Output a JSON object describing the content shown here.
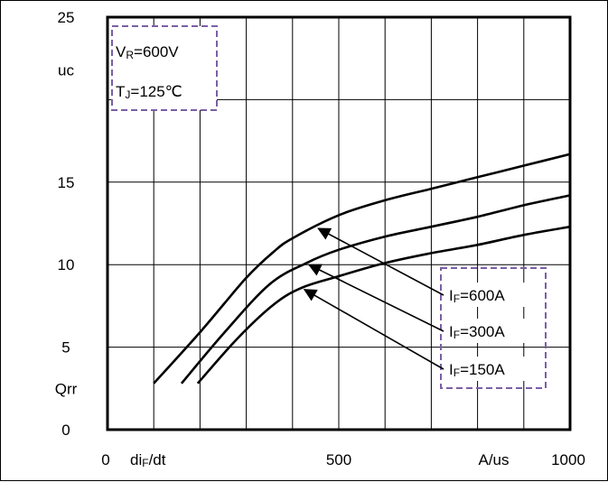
{
  "chart_data": {
    "type": "line",
    "xlabel": "diF/dt",
    "xlabel_main": "di",
    "xlabel_sub": "F",
    "xlabel_tail": "/dt",
    "xunit": "A/us",
    "ylabel": "Qrr",
    "yunit": "uc",
    "xlim": [
      0,
      1000
    ],
    "ylim": [
      0,
      25
    ],
    "x_ticks": [
      "0",
      "500",
      "1000"
    ],
    "y_ticks": [
      "0",
      "5",
      "10",
      "15",
      "25"
    ],
    "grid": true,
    "conditions": [
      {
        "text": "VR=600V",
        "main": "V",
        "sub": "R",
        "tail": "=600V"
      },
      {
        "text": "TJ=125℃",
        "main": "T",
        "sub": "J",
        "tail": "=125℃"
      }
    ],
    "series": [
      {
        "name": "IF=600A",
        "main": "I",
        "sub": "F",
        "tail": "=600A",
        "x": [
          100,
          200,
          300,
          360,
          400,
          500,
          600,
          700,
          800,
          900,
          1000
        ],
        "y": [
          2.8,
          5.9,
          9.2,
          10.8,
          11.6,
          13.0,
          13.9,
          14.6,
          15.3,
          16.0,
          16.7
        ],
        "arrow_x": 450
      },
      {
        "name": "IF=300A",
        "main": "I",
        "sub": "F",
        "tail": "=300A",
        "x": [
          160,
          250,
          350,
          430,
          500,
          600,
          700,
          800,
          900,
          1000
        ],
        "y": [
          2.8,
          5.8,
          8.8,
          10.1,
          10.9,
          11.7,
          12.3,
          12.9,
          13.6,
          14.2
        ],
        "arrow_x": 430
      },
      {
        "name": "IF=150A",
        "main": "I",
        "sub": "F",
        "tail": "=150A",
        "x": [
          195,
          280,
          360,
          420,
          500,
          600,
          700,
          800,
          900,
          1000
        ],
        "y": [
          2.8,
          5.5,
          7.6,
          8.6,
          9.3,
          10.1,
          10.7,
          11.2,
          11.8,
          12.3
        ],
        "arrow_x": 420
      }
    ]
  }
}
